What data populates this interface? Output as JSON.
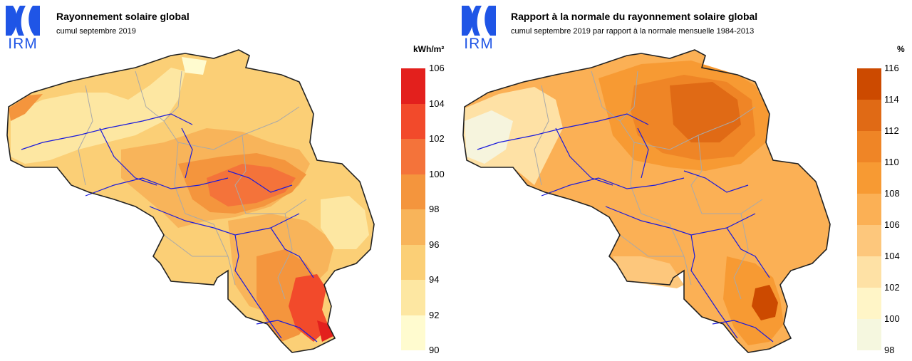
{
  "panels": [
    {
      "logo_text": "IRM",
      "title": "Rayonnement solaire global",
      "subtitle": "cumul septembre 2019",
      "unit": "kWh/m²",
      "legend": {
        "ticks": [
          "106",
          "104",
          "102",
          "100",
          "98",
          "96",
          "94",
          "92",
          "90"
        ],
        "colors": [
          "#e3201d",
          "#f24a2b",
          "#f4733a",
          "#f4953d",
          "#f8b45a",
          "#fbcf76",
          "#fde7a2",
          "#fffbcf"
        ]
      },
      "map_colors": [
        "#fde7a2",
        "#fbcf76",
        "#f8b45a",
        "#f4953d",
        "#f4733a",
        "#f24a2b",
        "#e3201d"
      ]
    },
    {
      "logo_text": "IRM",
      "title": "Rapport à la normale du rayonnement solaire global",
      "subtitle": "cumul septembre 2019 par rapport à la normale mensuelle 1984-2013",
      "unit": "%",
      "legend": {
        "ticks": [
          "116",
          "114",
          "112",
          "110",
          "108",
          "106",
          "104",
          "102",
          "100",
          "98"
        ],
        "colors": [
          "#cc4a00",
          "#e06a15",
          "#ef8526",
          "#f79a33",
          "#fbb055",
          "#fdc77c",
          "#fee1a5",
          "#fff5c7",
          "#f5f7df"
        ]
      },
      "map_colors": [
        "#f6f4dd",
        "#fee1a5",
        "#fdc77c",
        "#fbb055",
        "#f79a33",
        "#ef8526",
        "#e06a15",
        "#cc4a00"
      ]
    }
  ]
}
